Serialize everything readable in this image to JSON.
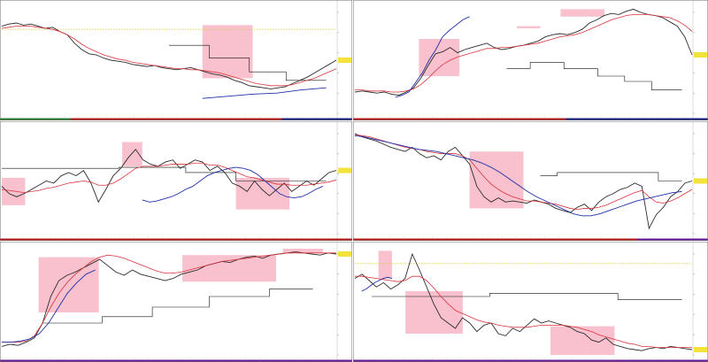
{
  "colors": {
    "price": "#2b2b2b",
    "fast_ma": "#d8343c",
    "slow_ma": "#1f2fa8",
    "highlight": "#f7b6c4",
    "level": "#111111",
    "dotted": "#d9cf4a",
    "tag_bg": "#f2e23a",
    "divider": "#6e6e6e"
  },
  "chart_data": [
    {
      "type": "line",
      "id": "p1",
      "symbol": "",
      "ylim": [
        0,
        1
      ],
      "price_axis_ticks": [
        "",
        "",
        "",
        "",
        "",
        ""
      ],
      "series": [
        {
          "values": [
            0.82,
            0.84,
            0.85,
            0.83,
            0.84,
            0.82,
            0.8,
            0.81,
            0.77,
            0.74,
            0.66,
            0.6,
            0.56,
            0.55,
            0.52,
            0.5,
            0.49,
            0.48,
            0.46,
            0.45,
            0.44,
            0.45,
            0.43,
            0.42,
            0.41,
            0.42,
            0.43,
            0.41,
            0.39,
            0.37,
            0.36,
            0.34,
            0.31,
            0.29,
            0.26,
            0.25,
            0.24,
            0.23,
            0.24,
            0.25,
            0.28,
            0.31,
            0.34,
            0.38,
            0.42,
            0.46,
            0.5
          ]
        },
        {
          "values": [
            0.8,
            0.81,
            0.82,
            0.82,
            0.82,
            0.81,
            0.8,
            0.79,
            0.77,
            0.74,
            0.7,
            0.65,
            0.61,
            0.58,
            0.55,
            0.53,
            0.51,
            0.5,
            0.48,
            0.47,
            0.46,
            0.45,
            0.44,
            0.43,
            0.42,
            0.42,
            0.41,
            0.41,
            0.4,
            0.39,
            0.38,
            0.36,
            0.34,
            0.32,
            0.3,
            0.28,
            0.27,
            0.26,
            0.26,
            0.26,
            0.27,
            0.29,
            0.31,
            0.33,
            0.36,
            0.39,
            0.42
          ]
        },
        {
          "values": [
            0.14,
            0.16,
            0.18,
            0.19,
            0.22,
            0.24
          ]
        }
      ],
      "highlights": [
        [
          0.19,
          0.81,
          0.43,
          0.57
        ],
        [
          0.44,
          0.64,
          0.51,
          0.55
        ],
        [
          0.6,
          0.75,
          0.83,
          0.33
        ]
      ],
      "level_path": [
        [
          0.5,
          0.64
        ],
        [
          0.62,
          0.64
        ],
        [
          0.62,
          0.52
        ],
        [
          0.74,
          0.52
        ],
        [
          0.74,
          0.39
        ],
        [
          0.85,
          0.39
        ],
        [
          0.85,
          0.31
        ],
        [
          0.97,
          0.31
        ]
      ],
      "reference_line": 0.79
    },
    {
      "type": "line",
      "id": "p2",
      "symbol": "",
      "ylim": [
        0,
        1
      ],
      "price_axis_ticks": [
        "",
        "",
        "",
        "",
        "",
        ""
      ],
      "series": [
        {
          "values": [
            0.2,
            0.21,
            0.2,
            0.19,
            0.2,
            0.18,
            0.17,
            0.2,
            0.24,
            0.33,
            0.45,
            0.56,
            0.58,
            0.62,
            0.57,
            0.6,
            0.62,
            0.64,
            0.66,
            0.62,
            0.6,
            0.61,
            0.63,
            0.64,
            0.66,
            0.68,
            0.72,
            0.74,
            0.75,
            0.74,
            0.76,
            0.79,
            0.85,
            0.88,
            0.92,
            0.94,
            0.93,
            0.96,
            0.98,
            0.95,
            0.93,
            0.92,
            0.9,
            0.86,
            0.82,
            0.72,
            0.55
          ]
        },
        {
          "values": [
            0.22,
            0.22,
            0.21,
            0.21,
            0.21,
            0.2,
            0.2,
            0.21,
            0.23,
            0.27,
            0.33,
            0.4,
            0.46,
            0.5,
            0.53,
            0.55,
            0.57,
            0.59,
            0.61,
            0.61,
            0.62,
            0.62,
            0.63,
            0.64,
            0.65,
            0.66,
            0.68,
            0.7,
            0.72,
            0.73,
            0.74,
            0.76,
            0.79,
            0.82,
            0.85,
            0.88,
            0.9,
            0.92,
            0.93,
            0.93,
            0.93,
            0.92,
            0.91,
            0.9,
            0.87,
            0.83,
            0.77
          ]
        },
        {
          "values": [
            0.15,
            0.17,
            0.2,
            0.29,
            0.38,
            0.5,
            0.6,
            0.72,
            0.78,
            0.83,
            0.88,
            0.91
          ]
        }
      ],
      "highlights": [
        [
          0.19,
          0.31,
          0.7,
          0.35
        ],
        [
          0.48,
          0.55,
          0.82,
          0.8
        ],
        [
          0.61,
          0.74,
          0.98,
          0.91
        ]
      ],
      "level_path": [
        [
          0.45,
          0.42
        ],
        [
          0.52,
          0.42
        ],
        [
          0.52,
          0.48
        ],
        [
          0.62,
          0.48
        ],
        [
          0.62,
          0.42
        ],
        [
          0.72,
          0.42
        ],
        [
          0.72,
          0.35
        ],
        [
          0.8,
          0.35
        ],
        [
          0.8,
          0.3
        ],
        [
          0.88,
          0.3
        ],
        [
          0.88,
          0.22
        ],
        [
          0.97,
          0.22
        ]
      ],
      "reference_line": -1
    },
    {
      "type": "line",
      "id": "p3",
      "symbol": "",
      "ylim": [
        0,
        1
      ],
      "price_axis_ticks": [
        "",
        "",
        "",
        "",
        "",
        ""
      ],
      "series": [
        {
          "values": [
            0.45,
            0.38,
            0.35,
            0.38,
            0.42,
            0.46,
            0.5,
            0.48,
            0.55,
            0.58,
            0.55,
            0.6,
            0.48,
            0.3,
            0.42,
            0.55,
            0.62,
            0.72,
            0.8,
            0.7,
            0.66,
            0.64,
            0.68,
            0.7,
            0.62,
            0.66,
            0.7,
            0.68,
            0.6,
            0.64,
            0.58,
            0.48,
            0.45,
            0.4,
            0.5,
            0.42,
            0.36,
            0.42,
            0.48,
            0.4,
            0.45,
            0.5,
            0.46,
            0.52,
            0.58,
            0.6
          ]
        },
        {
          "values": [
            0.42,
            0.41,
            0.4,
            0.39,
            0.4,
            0.41,
            0.43,
            0.44,
            0.46,
            0.48,
            0.49,
            0.5,
            0.49,
            0.46,
            0.46,
            0.48,
            0.52,
            0.57,
            0.62,
            0.64,
            0.64,
            0.64,
            0.65,
            0.66,
            0.66,
            0.66,
            0.67,
            0.67,
            0.65,
            0.65,
            0.63,
            0.6,
            0.57,
            0.54,
            0.53,
            0.51,
            0.49,
            0.47,
            0.47,
            0.46,
            0.46,
            0.46,
            0.47,
            0.48,
            0.49,
            0.51
          ]
        },
        {
          "values": [
            0.32,
            0.3,
            0.31,
            0.33,
            0.35,
            0.38,
            0.42,
            0.45,
            0.5,
            0.55,
            0.58,
            0.6,
            0.62,
            0.63,
            0.62,
            0.6,
            0.56,
            0.5,
            0.44,
            0.38,
            0.35,
            0.34,
            0.35,
            0.38,
            0.42,
            0.45
          ]
        }
      ],
      "highlights": [
        [
          0.0,
          0.07,
          0.53,
          0.27
        ],
        [
          0.36,
          0.42,
          0.87,
          0.64
        ],
        [
          0.7,
          0.86,
          0.53,
          0.23
        ]
      ],
      "level_path": [
        [
          0.0,
          0.62
        ],
        [
          0.35,
          0.62
        ],
        [
          0.35,
          0.63
        ],
        [
          0.55,
          0.63
        ],
        [
          0.55,
          0.58
        ],
        [
          0.7,
          0.58
        ],
        [
          0.7,
          0.5
        ],
        [
          0.97,
          0.5
        ]
      ],
      "reference_line": -1
    },
    {
      "type": "line",
      "id": "p4",
      "symbol": "",
      "ylim": [
        0,
        1
      ],
      "price_axis_ticks": [
        "",
        "",
        "",
        "",
        "",
        ""
      ],
      "series": [
        {
          "values": [
            0.95,
            0.92,
            0.9,
            0.88,
            0.85,
            0.82,
            0.8,
            0.78,
            0.82,
            0.76,
            0.72,
            0.74,
            0.7,
            0.78,
            0.82,
            0.74,
            0.66,
            0.45,
            0.35,
            0.3,
            0.34,
            0.3,
            0.31,
            0.3,
            0.29,
            0.32,
            0.3,
            0.28,
            0.24,
            0.22,
            0.2,
            0.25,
            0.28,
            0.22,
            0.3,
            0.35,
            0.38,
            0.42,
            0.44,
            0.48,
            0.45,
            0.05,
            0.18,
            0.25,
            0.35,
            0.4,
            0.48,
            0.5
          ]
        },
        {
          "values": [
            0.94,
            0.93,
            0.92,
            0.9,
            0.88,
            0.86,
            0.84,
            0.82,
            0.81,
            0.8,
            0.78,
            0.77,
            0.76,
            0.76,
            0.76,
            0.74,
            0.7,
            0.62,
            0.54,
            0.47,
            0.42,
            0.38,
            0.35,
            0.33,
            0.31,
            0.31,
            0.3,
            0.29,
            0.28,
            0.26,
            0.24,
            0.23,
            0.24,
            0.24,
            0.25,
            0.27,
            0.3,
            0.33,
            0.36,
            0.39,
            0.41,
            0.35,
            0.3,
            0.29,
            0.31,
            0.34,
            0.38,
            0.42
          ]
        },
        {
          "values": [
            0.93,
            0.92,
            0.9,
            0.88,
            0.86,
            0.84,
            0.82,
            0.8,
            0.79,
            0.78,
            0.76,
            0.74,
            0.72,
            0.7,
            0.67,
            0.63,
            0.58,
            0.52,
            0.46,
            0.4,
            0.35,
            0.31,
            0.27,
            0.23,
            0.19,
            0.17,
            0.17,
            0.19,
            0.22,
            0.25,
            0.28,
            0.31,
            0.33,
            0.35,
            0.37,
            0.39,
            0.4
          ]
        }
      ],
      "highlights": [
        [
          0.34,
          0.5,
          0.78,
          0.24
        ]
      ],
      "level_path": [
        [
          0.55,
          0.55
        ],
        [
          0.6,
          0.55
        ],
        [
          0.6,
          0.58
        ],
        [
          0.9,
          0.58
        ],
        [
          0.9,
          0.5
        ],
        [
          0.97,
          0.5
        ]
      ],
      "reference_line": -1
    },
    {
      "type": "line",
      "id": "p5",
      "symbol": "",
      "ylim": [
        0,
        1
      ],
      "price_axis_ticks": [
        "",
        "",
        "",
        "",
        "",
        ""
      ],
      "series": [
        {
          "values": [
            0.08,
            0.1,
            0.09,
            0.12,
            0.16,
            0.3,
            0.55,
            0.7,
            0.75,
            0.78,
            0.82,
            0.86,
            0.9,
            0.84,
            0.78,
            0.75,
            0.8,
            0.76,
            0.74,
            0.72,
            0.7,
            0.72,
            0.76,
            0.78,
            0.8,
            0.84,
            0.86,
            0.88,
            0.87,
            0.9,
            0.92,
            0.93,
            0.91,
            0.94,
            0.95,
            0.96,
            0.97,
            0.96,
            0.95,
            0.94,
            0.96,
            0.95
          ]
        },
        {
          "values": [
            0.12,
            0.12,
            0.12,
            0.13,
            0.18,
            0.3,
            0.45,
            0.58,
            0.68,
            0.76,
            0.82,
            0.88,
            0.92,
            0.94,
            0.93,
            0.91,
            0.88,
            0.85,
            0.82,
            0.79,
            0.77,
            0.77,
            0.78,
            0.8,
            0.82,
            0.84,
            0.86,
            0.88,
            0.89,
            0.9,
            0.91,
            0.92,
            0.93,
            0.94,
            0.95,
            0.96,
            0.96,
            0.96,
            0.96,
            0.96,
            0.96,
            0.96
          ]
        },
        {
          "values": [
            0.12,
            0.12,
            0.13,
            0.15,
            0.2,
            0.3,
            0.44,
            0.58,
            0.68,
            0.76,
            0.8
          ]
        }
      ],
      "highlights": [
        [
          0.11,
          0.29,
          0.92,
          0.4
        ],
        [
          0.54,
          0.82,
          0.94,
          0.69
        ],
        [
          0.84,
          0.96,
          1.0,
          0.96
        ]
      ],
      "level_path": [
        [
          0.12,
          0.3
        ],
        [
          0.3,
          0.3
        ],
        [
          0.3,
          0.36
        ],
        [
          0.45,
          0.36
        ],
        [
          0.45,
          0.45
        ],
        [
          0.62,
          0.45
        ],
        [
          0.62,
          0.55
        ],
        [
          0.8,
          0.55
        ],
        [
          0.8,
          0.62
        ],
        [
          0.93,
          0.62
        ]
      ],
      "reference_line": -1
    },
    {
      "type": "line",
      "id": "p6",
      "symbol": "",
      "ylim": [
        0,
        1
      ],
      "price_axis_ticks": [
        "",
        "",
        "",
        "",
        "",
        ""
      ],
      "series": [
        {
          "values": [
            0.72,
            0.76,
            0.7,
            0.64,
            0.68,
            0.62,
            0.66,
            0.72,
            0.95,
            0.8,
            0.64,
            0.48,
            0.35,
            0.3,
            0.25,
            0.35,
            0.3,
            0.22,
            0.28,
            0.3,
            0.2,
            0.18,
            0.25,
            0.22,
            0.28,
            0.34,
            0.3,
            0.32,
            0.3,
            0.28,
            0.26,
            0.22,
            0.2,
            0.14,
            0.12,
            0.16,
            0.1,
            0.08,
            0.06,
            0.05,
            0.04,
            0.06,
            0.07,
            0.06,
            0.08,
            0.07,
            0.06,
            0.05
          ]
        },
        {
          "values": [
            0.74,
            0.74,
            0.73,
            0.72,
            0.71,
            0.7,
            0.69,
            0.7,
            0.74,
            0.74,
            0.7,
            0.63,
            0.55,
            0.48,
            0.42,
            0.39,
            0.36,
            0.33,
            0.31,
            0.3,
            0.28,
            0.27,
            0.26,
            0.26,
            0.26,
            0.27,
            0.28,
            0.28,
            0.28,
            0.28,
            0.27,
            0.26,
            0.24,
            0.22,
            0.19,
            0.17,
            0.15,
            0.13,
            0.11,
            0.1,
            0.08,
            0.08,
            0.07,
            0.07,
            0.07,
            0.07,
            0.07,
            0.07
          ]
        },
        {
          "values": [
            0.6,
            0.62,
            0.65,
            0.68,
            0.7,
            0.72,
            0.73,
            0.72
          ]
        }
      ],
      "highlights": [
        [
          0.07,
          0.11,
          0.98,
          0.72
        ],
        [
          0.15,
          0.32,
          0.6,
          0.2
        ],
        [
          0.58,
          0.77,
          0.27,
          0.0
        ]
      ],
      "level_path": [
        [
          0.05,
          0.55
        ],
        [
          0.4,
          0.55
        ],
        [
          0.4,
          0.58
        ],
        [
          0.78,
          0.58
        ],
        [
          0.78,
          0.52
        ],
        [
          0.97,
          0.52
        ]
      ],
      "reference_line": 0.86
    }
  ]
}
